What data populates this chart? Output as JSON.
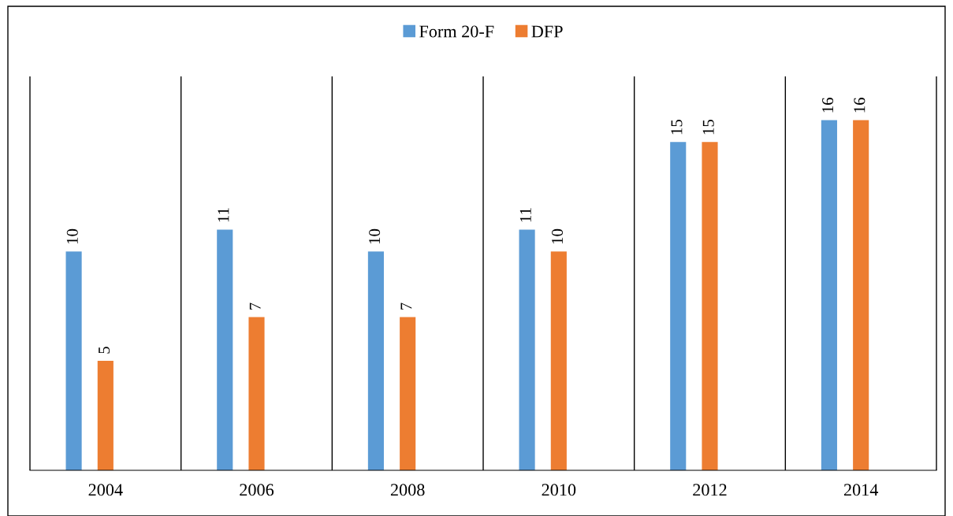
{
  "chart_data": {
    "type": "bar",
    "categories": [
      "2004",
      "2006",
      "2008",
      "2010",
      "2012",
      "2014"
    ],
    "series": [
      {
        "name": "Form 20-F",
        "color": "#5b9bd5",
        "values": [
          10,
          11,
          10,
          11,
          15,
          16
        ]
      },
      {
        "name": "DFP",
        "color": "#ed7d31",
        "values": [
          5,
          7,
          7,
          10,
          15,
          16
        ]
      }
    ],
    "data_labels": true,
    "legend": "top",
    "grid": false
  }
}
